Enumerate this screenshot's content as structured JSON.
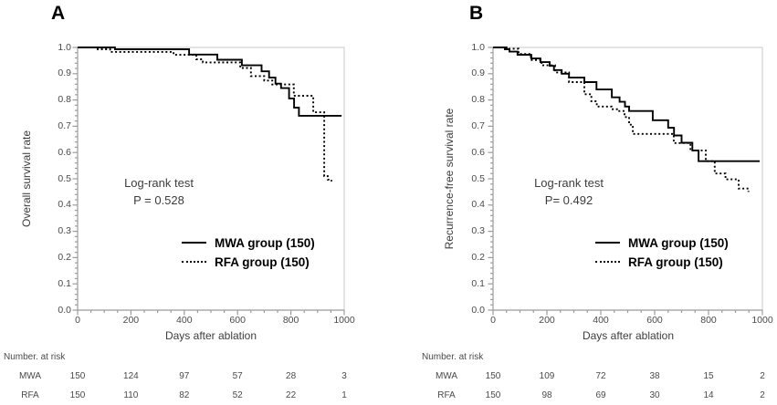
{
  "figure": {
    "background": "#ffffff",
    "curve_color": "#000000",
    "axis_color": "#9b9b9b",
    "plot_border_color": "#c8c8c8",
    "panels": [
      {
        "label": "A",
        "y_axis_title": "Overall survival rate",
        "x_axis_title": "Days after ablation",
        "logrank": {
          "line1": "Log-rank test",
          "line2": "P = 0.528"
        },
        "legend": {
          "items": [
            {
              "label": "MWA group (150)",
              "line_style": "solid"
            },
            {
              "label": "RFA group (150)",
              "line_style": "dotted"
            }
          ]
        },
        "risk_table": {
          "header": "Number. at risk",
          "rows": [
            {
              "label": "MWA",
              "values": [
                "150",
                "124",
                "97",
                "57",
                "28",
                "3"
              ]
            },
            {
              "label": "RFA",
              "values": [
                "150",
                "110",
                "82",
                "52",
                "22",
                "1"
              ]
            }
          ]
        }
      },
      {
        "label": "B",
        "y_axis_title": "Recurrence-free survival rate",
        "x_axis_title": "Days after ablation",
        "logrank": {
          "line1": "Log-rank test",
          "line2": "P= 0.492"
        },
        "legend": {
          "items": [
            {
              "label": "MWA group (150)",
              "line_style": "solid"
            },
            {
              "label": "RFA group (150)",
              "line_style": "dotted"
            }
          ]
        },
        "risk_table": {
          "header": "Number. at risk",
          "rows": [
            {
              "label": "MWA",
              "values": [
                "150",
                "109",
                "72",
                "38",
                "15",
                "2"
              ]
            },
            {
              "label": "RFA",
              "values": [
                "150",
                "98",
                "69",
                "30",
                "14",
                "2"
              ]
            }
          ]
        }
      }
    ]
  },
  "chart_data": [
    {
      "type": "line",
      "subtype": "kaplan_meier_step",
      "panel": "A",
      "title": "A",
      "xlabel": "Days after ablation",
      "ylabel": "Overall survival rate",
      "xlim": [
        0,
        1000
      ],
      "ylim": [
        0.0,
        1.0
      ],
      "x_ticks": [
        0,
        200,
        400,
        600,
        800,
        1000
      ],
      "x_minor_tick_interval": 50,
      "y_ticks": [
        0.0,
        0.1,
        0.2,
        0.3,
        0.4,
        0.5,
        0.6,
        0.7,
        0.8,
        0.9,
        1.0
      ],
      "y_minor_tick_interval": 0.02,
      "grid": false,
      "annotation": {
        "lines": [
          "Log-rank test",
          "P = 0.528"
        ],
        "position": "inside-left-center"
      },
      "legend_position": "inside-lower-right",
      "series": [
        {
          "name": "MWA group (150)",
          "line": "solid",
          "color": "#000000",
          "n": 150,
          "points": [
            [
              0,
              1.0
            ],
            [
              140,
              0.993
            ],
            [
              418,
              0.973
            ],
            [
              524,
              0.953
            ],
            [
              616,
              0.932
            ],
            [
              690,
              0.909
            ],
            [
              718,
              0.885
            ],
            [
              742,
              0.862
            ],
            [
              763,
              0.845
            ],
            [
              793,
              0.806
            ],
            [
              812,
              0.771
            ],
            [
              830,
              0.74
            ],
            [
              990,
              0.74
            ]
          ]
        },
        {
          "name": "RFA group (150)",
          "line": "dotted",
          "color": "#000000",
          "n": 150,
          "points": [
            [
              0,
              1.0
            ],
            [
              70,
              0.993
            ],
            [
              122,
              0.983
            ],
            [
              360,
              0.972
            ],
            [
              445,
              0.955
            ],
            [
              470,
              0.943
            ],
            [
              610,
              0.922
            ],
            [
              650,
              0.891
            ],
            [
              700,
              0.874
            ],
            [
              730,
              0.859
            ],
            [
              811,
              0.816
            ],
            [
              884,
              0.753
            ],
            [
              925,
              0.51
            ],
            [
              938,
              0.497
            ],
            [
              952,
              0.49
            ]
          ]
        }
      ],
      "number_at_risk": {
        "times": [
          0,
          200,
          400,
          600,
          800,
          1000
        ],
        "MWA": [
          150,
          124,
          97,
          57,
          28,
          3
        ],
        "RFA": [
          150,
          110,
          82,
          52,
          22,
          1
        ]
      }
    },
    {
      "type": "line",
      "subtype": "kaplan_meier_step",
      "panel": "B",
      "title": "B",
      "xlabel": "Days after ablation",
      "ylabel": "Recurrence-free survival rate",
      "xlim": [
        0,
        1000
      ],
      "ylim": [
        0.0,
        1.0
      ],
      "x_ticks": [
        0,
        200,
        400,
        600,
        800,
        1000
      ],
      "x_minor_tick_interval": 50,
      "y_ticks": [
        0.0,
        0.1,
        0.2,
        0.3,
        0.4,
        0.5,
        0.6,
        0.7,
        0.8,
        0.9,
        1.0
      ],
      "y_minor_tick_interval": 0.02,
      "grid": false,
      "annotation": {
        "lines": [
          "Log-rank test",
          "P= 0.492"
        ],
        "position": "inside-left-center"
      },
      "legend_position": "inside-lower-right",
      "series": [
        {
          "name": "MWA group (150)",
          "line": "solid",
          "color": "#000000",
          "n": 150,
          "points": [
            [
              0,
              1.0
            ],
            [
              44,
              0.993
            ],
            [
              61,
              0.984
            ],
            [
              91,
              0.972
            ],
            [
              142,
              0.958
            ],
            [
              176,
              0.944
            ],
            [
              210,
              0.93
            ],
            [
              226,
              0.914
            ],
            [
              255,
              0.9
            ],
            [
              282,
              0.885
            ],
            [
              339,
              0.868
            ],
            [
              384,
              0.84
            ],
            [
              441,
              0.81
            ],
            [
              470,
              0.793
            ],
            [
              490,
              0.775
            ],
            [
              505,
              0.758
            ],
            [
              593,
              0.723
            ],
            [
              650,
              0.694
            ],
            [
              672,
              0.665
            ],
            [
              700,
              0.637
            ],
            [
              740,
              0.608
            ],
            [
              763,
              0.567
            ],
            [
              990,
              0.567
            ]
          ]
        },
        {
          "name": "RFA group (150)",
          "line": "dotted",
          "color": "#000000",
          "n": 150,
          "points": [
            [
              0,
              1.0
            ],
            [
              60,
              0.995
            ],
            [
              95,
              0.975
            ],
            [
              140,
              0.952
            ],
            [
              180,
              0.932
            ],
            [
              230,
              0.905
            ],
            [
              282,
              0.868
            ],
            [
              339,
              0.822
            ],
            [
              365,
              0.795
            ],
            [
              385,
              0.775
            ],
            [
              440,
              0.765
            ],
            [
              460,
              0.758
            ],
            [
              488,
              0.735
            ],
            [
              505,
              0.706
            ],
            [
              519,
              0.671
            ],
            [
              671,
              0.636
            ],
            [
              733,
              0.608
            ],
            [
              790,
              0.567
            ],
            [
              823,
              0.52
            ],
            [
              863,
              0.498
            ],
            [
              912,
              0.463
            ],
            [
              948,
              0.45
            ]
          ]
        }
      ],
      "number_at_risk": {
        "times": [
          0,
          200,
          400,
          600,
          800,
          1000
        ],
        "MWA": [
          150,
          109,
          72,
          38,
          15,
          2
        ],
        "RFA": [
          150,
          98,
          69,
          30,
          14,
          2
        ]
      }
    }
  ]
}
